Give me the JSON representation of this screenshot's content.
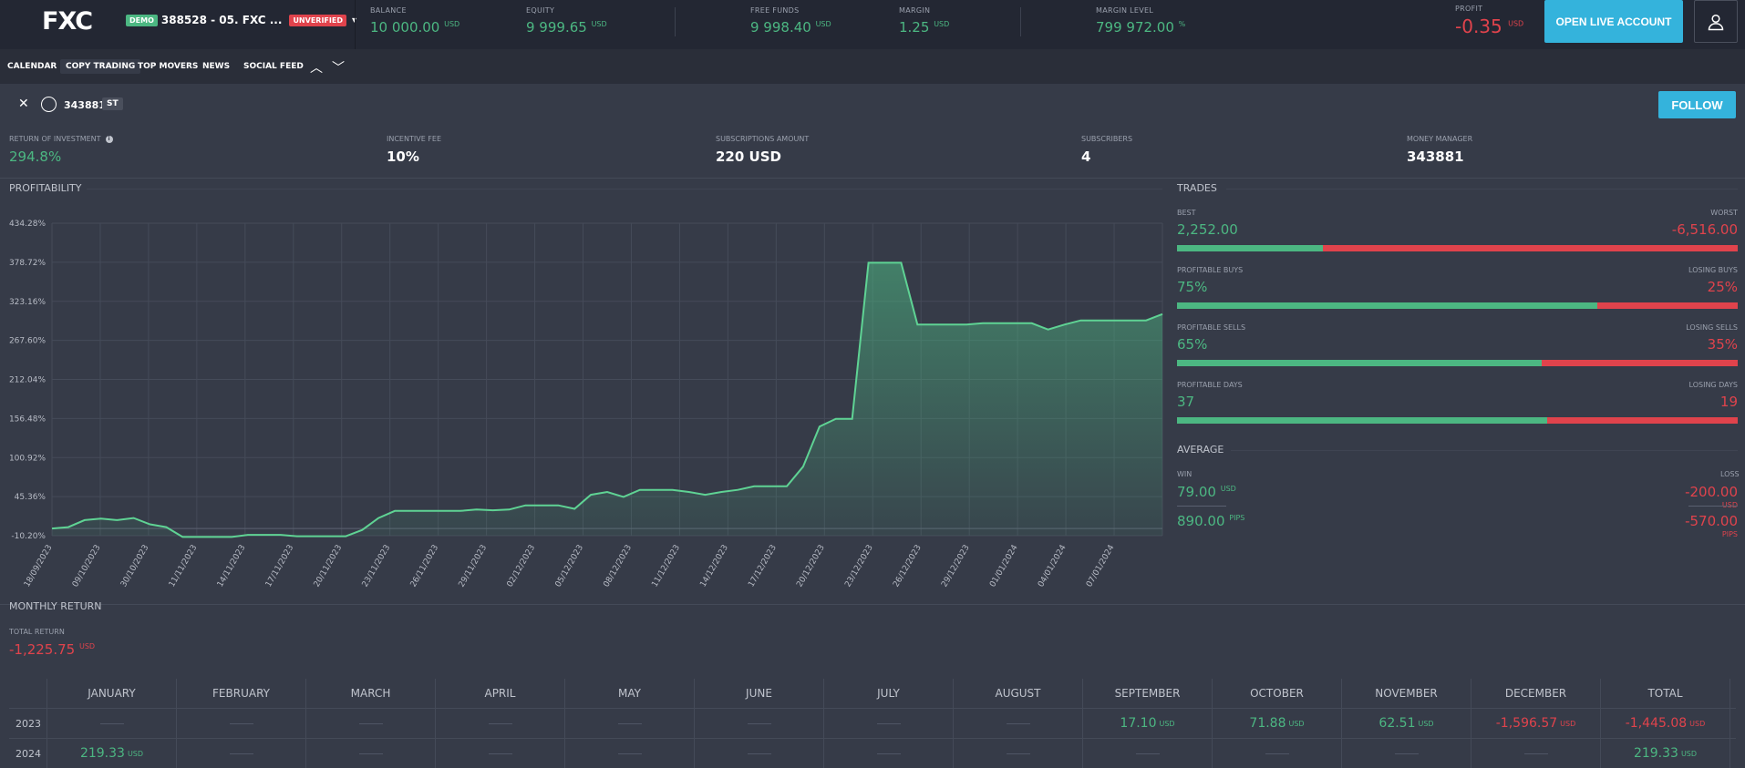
{
  "header": {
    "logo": "FXC",
    "demo_badge": "DEMO",
    "account_name": "388528 - 05. FXC ...",
    "unverified_badge": "UNVERIFIED",
    "stats": [
      {
        "label": "BALANCE",
        "value": "10 000.00",
        "unit": "USD"
      },
      {
        "label": "EQUITY",
        "value": "9 999.65",
        "unit": "USD"
      },
      {
        "label": "FREE FUNDS",
        "value": "9 998.40",
        "unit": "USD"
      },
      {
        "label": "MARGIN",
        "value": "1.25",
        "unit": "USD"
      },
      {
        "label": "MARGIN LEVEL",
        "value": "799 972.00",
        "unit": "%"
      }
    ],
    "profit": {
      "label": "PROFIT",
      "value": "-0.35",
      "unit": "USD"
    },
    "live_button": "OPEN LIVE ACCOUNT",
    "user_icon": "user-icon"
  },
  "tabs": [
    "CALENDAR",
    "COPY TRADING",
    "TOP MOVERS",
    "NEWS",
    "SOCIAL FEED"
  ],
  "profile": {
    "id": "343881",
    "badge": "ST",
    "follow_button": "FOLLOW"
  },
  "kpis": [
    {
      "label": "RETURN OF INVESTMENT",
      "value": "294.8%"
    },
    {
      "label": "INCENTIVE FEE",
      "value": "10%"
    },
    {
      "label": "SUBSCRIPTIONS AMOUNT",
      "value": "220 USD"
    },
    {
      "label": "SUBSCRIBERS",
      "value": "4"
    },
    {
      "label": "MONEY MANAGER",
      "value": "343881"
    }
  ],
  "profitability_title": "PROFITABILITY",
  "chart_data": {
    "type": "area",
    "ylim": [
      -10.2,
      434.28
    ],
    "y_ticks": [
      "434.28%",
      "378.72%",
      "323.16%",
      "267.60%",
      "212.04%",
      "156.48%",
      "100.92%",
      "45.36%",
      "-10.20%"
    ],
    "x_ticks": [
      "18/09/2023",
      "09/10/2023",
      "30/10/2023",
      "11/11/2023",
      "14/11/2023",
      "17/11/2023",
      "20/11/2023",
      "23/11/2023",
      "26/11/2023",
      "29/11/2023",
      "02/12/2023",
      "05/12/2023",
      "08/12/2023",
      "11/12/2023",
      "14/12/2023",
      "17/12/2023",
      "20/12/2023",
      "23/12/2023",
      "26/12/2023",
      "29/12/2023",
      "01/01/2024",
      "04/01/2024",
      "07/01/2024"
    ],
    "values": [
      0,
      2,
      12,
      14,
      12,
      15,
      6,
      2,
      -12,
      -12,
      -12,
      -12,
      -9,
      -9,
      -9,
      -11,
      -11,
      -11,
      -11,
      -2,
      15,
      25,
      25,
      25,
      25,
      25,
      27,
      26,
      27,
      33,
      33,
      33,
      28,
      48,
      52,
      45,
      55,
      55,
      55,
      52,
      48,
      52,
      55,
      60,
      60,
      60,
      88,
      145,
      156,
      156,
      378,
      378,
      378,
      290,
      290,
      290,
      290,
      292,
      292,
      292,
      292,
      283,
      290,
      296,
      296,
      296,
      296,
      296,
      305
    ]
  },
  "trades": {
    "title": "TRADES",
    "rows": [
      {
        "left_label": "BEST",
        "left_value": "2,252.00",
        "right_label": "WORST",
        "right_value": "-6,516.00",
        "ratio": 0.26
      },
      {
        "left_label": "PROFITABLE BUYS",
        "left_value": "75%",
        "right_label": "LOSING BUYS",
        "right_value": "25%",
        "ratio": 0.75
      },
      {
        "left_label": "PROFITABLE SELLS",
        "left_value": "65%",
        "right_label": "LOSING SELLS",
        "right_value": "35%",
        "ratio": 0.65
      },
      {
        "left_label": "PROFITABLE DAYS",
        "left_value": "37",
        "right_label": "LOSING DAYS",
        "right_value": "19",
        "ratio": 0.66
      }
    ]
  },
  "average": {
    "title": "AVERAGE",
    "win_label": "WIN",
    "win_value": "79.00",
    "win_unit": "USD",
    "win_pips": "890.00",
    "loss_label": "LOSS",
    "loss_value": "-200.00",
    "loss_unit": "USD",
    "loss_pips": "-570.00",
    "pips_unit": "PIPS"
  },
  "monthly": {
    "title": "MONTHLY RETURN",
    "total_label": "TOTAL RETURN",
    "total_value": "-1,225.75",
    "total_unit": "USD",
    "columns": [
      "",
      "JANUARY",
      "FEBRUARY",
      "MARCH",
      "APRIL",
      "MAY",
      "JUNE",
      "JULY",
      "AUGUST",
      "SEPTEMBER",
      "OCTOBER",
      "NOVEMBER",
      "DECEMBER",
      "TOTAL"
    ],
    "rows": [
      {
        "year": "2023",
        "cells": [
          null,
          null,
          null,
          null,
          null,
          null,
          null,
          null,
          "17.10",
          "71.88",
          "62.51",
          "-1,596.57",
          "-1,445.08"
        ]
      },
      {
        "year": "2024",
        "cells": [
          "219.33",
          null,
          null,
          null,
          null,
          null,
          null,
          null,
          null,
          null,
          null,
          null,
          "219.33"
        ]
      }
    ],
    "unit": "USD"
  }
}
